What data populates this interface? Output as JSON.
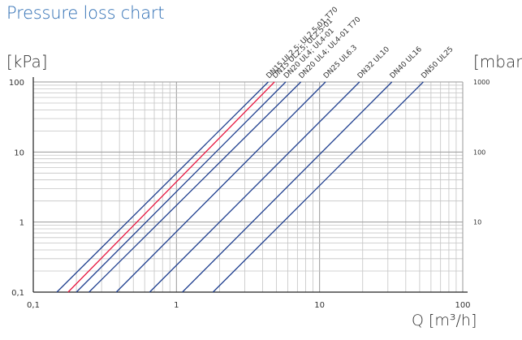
{
  "title": "Pressure loss chart",
  "chart_data": {
    "type": "line",
    "title": "Pressure loss chart",
    "xlabel": "Q [m³/h]",
    "ylabel_left": "[kPa]",
    "ylabel_right": "[mbar]",
    "x_scale": "log",
    "y_scale": "log",
    "xlim": [
      0.1,
      100
    ],
    "ylim": [
      0.1,
      100
    ],
    "grid": true,
    "x_ticks": [
      "0,1",
      "1",
      "10",
      "100"
    ],
    "y_ticks_left": [
      "0,1",
      "1",
      "10",
      "100"
    ],
    "y_ticks_right": [
      "10",
      "100",
      "1000"
    ],
    "series": [
      {
        "name": "DN15 UL2.5; UL2.5-01",
        "color": "#e8173f",
        "x": [
          0.175,
          4.84
        ],
        "y": [
          0.1,
          100
        ]
      },
      {
        "name": "DN15 UL2.5; UL2.5-01 T70",
        "color": "#1f3f8f",
        "x": [
          0.146,
          4.38
        ],
        "y": [
          0.1,
          100
        ]
      },
      {
        "name": "DN20 UL4; UL4-01",
        "color": "#1f3f8f",
        "x": [
          0.2,
          5.8
        ],
        "y": [
          0.1,
          100
        ]
      },
      {
        "name": "DN20 UL4; UL4-01 T70",
        "color": "#1f3f8f",
        "x": [
          0.245,
          7.4
        ],
        "y": [
          0.1,
          100
        ]
      },
      {
        "name": "DN25 UL6.3",
        "color": "#1f3f8f",
        "x": [
          0.38,
          11.0
        ],
        "y": [
          0.1,
          100
        ]
      },
      {
        "name": "DN32 UL10",
        "color": "#1f3f8f",
        "x": [
          0.65,
          19.0
        ],
        "y": [
          0.1,
          100
        ]
      },
      {
        "name": "DN40 UL16",
        "color": "#1f3f8f",
        "x": [
          1.1,
          32.0
        ],
        "y": [
          0.1,
          100
        ]
      },
      {
        "name": "DN50 UL25",
        "color": "#1f3f8f",
        "x": [
          1.8,
          53.0
        ],
        "y": [
          0.1,
          100
        ]
      }
    ]
  }
}
